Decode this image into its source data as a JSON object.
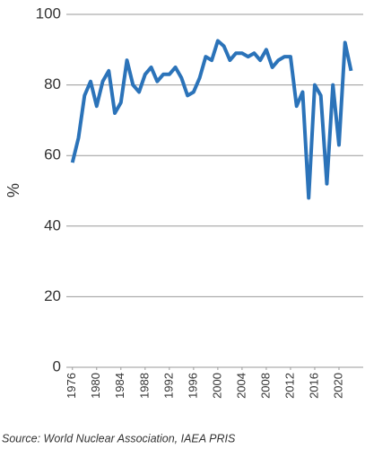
{
  "chart_data": {
    "type": "line",
    "y_label": "%",
    "source": "Source: World Nuclear Association, IAEA PRIS",
    "x": [
      1976,
      1977,
      1978,
      1979,
      1980,
      1981,
      1982,
      1983,
      1984,
      1985,
      1986,
      1987,
      1988,
      1989,
      1990,
      1991,
      1992,
      1993,
      1994,
      1995,
      1996,
      1997,
      1998,
      1999,
      2000,
      2001,
      2002,
      2003,
      2004,
      2005,
      2006,
      2007,
      2008,
      2009,
      2010,
      2011,
      2012,
      2013,
      2014,
      2015,
      2016,
      2017,
      2018,
      2019,
      2020,
      2021,
      2022
    ],
    "series": [
      {
        "color": "#2b73b9",
        "values": [
          58,
          65,
          77,
          81,
          74,
          81,
          84,
          72,
          75,
          87,
          80,
          78,
          83,
          85,
          81,
          83,
          83,
          85,
          82,
          77,
          78,
          82,
          88,
          87,
          92.5,
          91,
          87,
          89,
          89,
          88,
          89,
          87,
          90,
          85,
          87,
          88,
          88,
          74,
          78,
          48,
          80,
          77,
          52,
          80,
          63,
          92,
          84
        ]
      }
    ],
    "xlim": [
      1975,
      2024
    ],
    "xticks": [
      1976,
      1980,
      1984,
      1988,
      1992,
      1996,
      2000,
      2004,
      2008,
      2012,
      2016,
      2020
    ],
    "ylim": [
      0,
      100
    ],
    "yticks": [
      0,
      20,
      40,
      60,
      80,
      100
    ],
    "grid": true
  }
}
